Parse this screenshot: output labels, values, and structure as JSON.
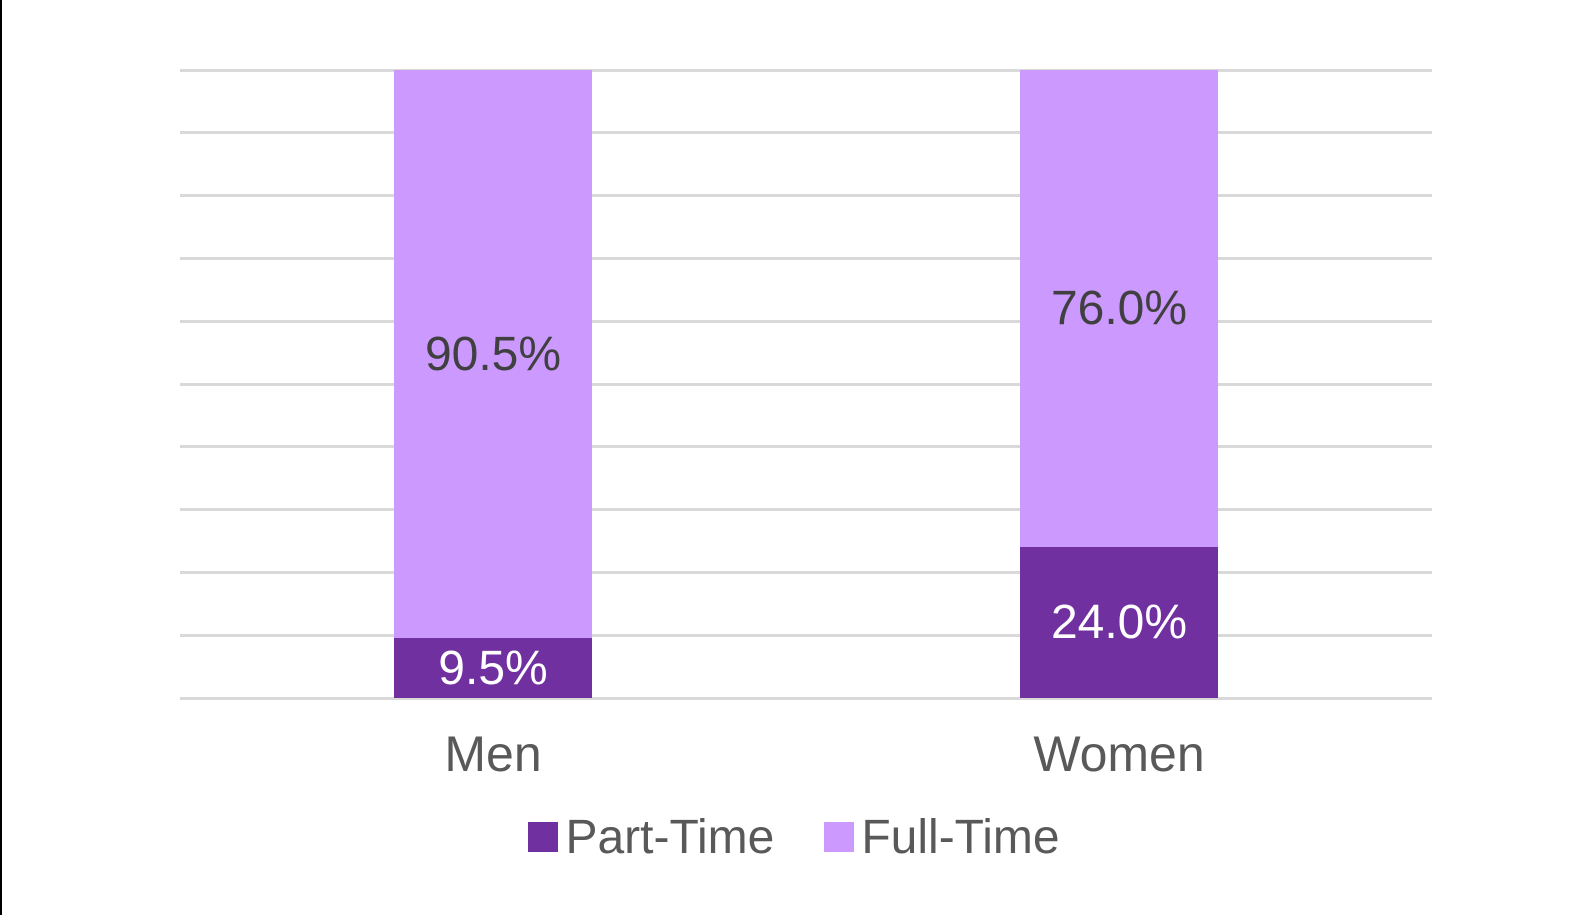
{
  "page": {
    "background": "#FFFFFF",
    "left_edge_color": "#000000"
  },
  "chart_data": {
    "type": "bar",
    "subtype": "stacked",
    "orientation": "vertical",
    "title": "",
    "xlabel": "",
    "ylabel": "",
    "categories": [
      "Men",
      "Women"
    ],
    "series": [
      {
        "name": "Part-Time",
        "color": "#7030A0",
        "values": [
          9.5,
          24.0
        ],
        "labels": [
          "9.5%",
          "24.0%"
        ],
        "label_color": "#FFFFFF"
      },
      {
        "name": "Full-Time",
        "color": "#CC99FF",
        "values": [
          90.5,
          76.0
        ],
        "labels": [
          "90.5%",
          "76.0%"
        ],
        "label_color": "#404040"
      }
    ],
    "ylim": [
      0,
      100
    ],
    "grid": {
      "show": true,
      "step": 10,
      "color": "#D9D9D9"
    },
    "axis_label_color": "#595959",
    "legend": {
      "position": "bottom",
      "entries": [
        "Part-Time",
        "Full-Time"
      ],
      "text_color": "#595959"
    }
  }
}
